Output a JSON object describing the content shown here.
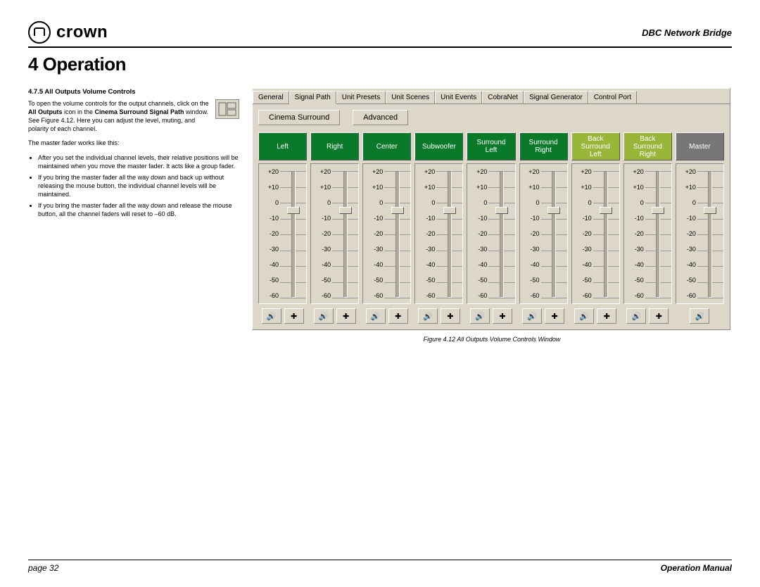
{
  "header": {
    "brand": "crown",
    "doc_title": "DBC Network Bridge"
  },
  "section_title": "4 Operation",
  "left": {
    "subhead": "4.7.5 All Outputs Volume Controls",
    "p1_a": "To open the volume controls for the output channels, click on the ",
    "p1_b": "All Outputs",
    "p1_c": " icon in the ",
    "p1_d": "Cinema Surround Signal Path",
    "p1_e": " window. See Figure 4.12. Here you can adjust the level, muting, and polarity of each channel.",
    "p2": "The master fader works like this:",
    "b1": "After you set the individual channel levels, their relative positions will be maintained when you move the master fader. It acts like a group fader.",
    "b2": "If you bring the master fader all the way down and back up without releasing the mouse button, the individual channel levels will be maintained.",
    "b3": "If you bring the master fader all the way down and release the mouse button, all the channel faders will reset to –60 dB."
  },
  "panel": {
    "tabs": [
      "General",
      "Signal Path",
      "Unit Presets",
      "Unit Scenes",
      "Unit Events",
      "CobraNet",
      "Signal Generator",
      "Control Port"
    ],
    "active_tab_index": 1,
    "sub_btns": [
      "Cinema Surround",
      "Advanced"
    ],
    "scale_labels": [
      "+20",
      "+10",
      "0",
      "-10",
      "-20",
      "-30",
      "-40",
      "-50",
      "-60"
    ],
    "channels": [
      {
        "label": "Left",
        "color": "#0a7a2a",
        "two_btn": true
      },
      {
        "label": "Right",
        "color": "#0a7a2a",
        "two_btn": true
      },
      {
        "label": "Center",
        "color": "#0a7a2a",
        "two_btn": true
      },
      {
        "label": "Subwoofer",
        "color": "#0a7a2a",
        "two_btn": true
      },
      {
        "label": "Surround\nLeft",
        "color": "#0a7a2a",
        "two_btn": true
      },
      {
        "label": "Surround\nRight",
        "color": "#0a7a2a",
        "two_btn": true
      },
      {
        "label": "Back\nSurround\nLeft",
        "color": "#9ab63a",
        "two_btn": true
      },
      {
        "label": "Back\nSurround\nRight",
        "color": "#9ab63a",
        "two_btn": true
      },
      {
        "label": "Master",
        "color": "#777777",
        "two_btn": false
      }
    ],
    "thumb_pos_pct": 25,
    "mute_glyph": "🔊",
    "polarity_glyph": "✚"
  },
  "caption": "Figure 4.12  All Outputs Volume Controls Window",
  "footer": {
    "left": "page 32",
    "right": "Operation Manual"
  }
}
